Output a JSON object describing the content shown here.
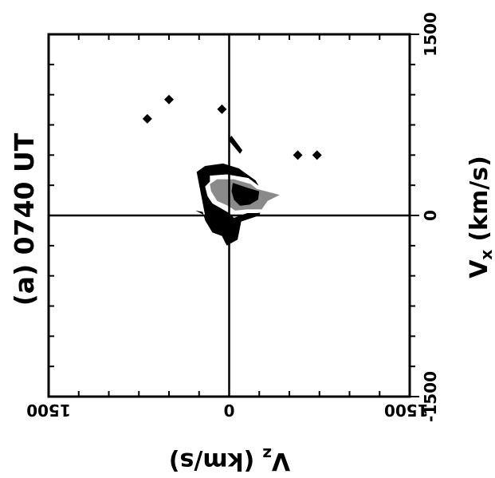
{
  "chart_data": {
    "type": "scatter",
    "panel_label": "(a) 0740 UT",
    "xlabel_base": "V",
    "xlabel_sub": "z",
    "xlabel_unit": "(km/s)",
    "ylabel_base": "V",
    "ylabel_sub": "x",
    "ylabel_unit": "(km/s)",
    "xlim": [
      1500,
      -1500
    ],
    "ylim": [
      -1500,
      1500
    ],
    "x_ticks": [
      1500,
      0,
      -1500
    ],
    "x_tick_labels": [
      "1500",
      "0",
      "-1500"
    ],
    "y_ticks": [
      -1500,
      0,
      1500
    ],
    "y_tick_labels": [
      "-1500",
      "0",
      "1500"
    ],
    "grid": false,
    "zero_lines": true,
    "colors": {
      "ink": "#000000",
      "mid": "#8a8a8a",
      "light": "#d0d0d0"
    },
    "points": [
      {
        "vz": 680,
        "vx": 800
      },
      {
        "vz": 500,
        "vx": 960
      },
      {
        "vz": 60,
        "vx": 880
      },
      {
        "vz": -570,
        "vx": 500
      },
      {
        "vz": -730,
        "vx": 500
      }
    ],
    "contours": [
      {
        "level": "outer",
        "fill": "#000000",
        "points": [
          [
            270,
            360
          ],
          [
            200,
            410
          ],
          [
            50,
            430
          ],
          [
            -80,
            390
          ],
          [
            -220,
            290
          ],
          [
            -300,
            150
          ],
          [
            -250,
            0
          ],
          [
            -100,
            -50
          ],
          [
            -70,
            -200
          ],
          [
            20,
            -250
          ],
          [
            60,
            -170
          ],
          [
            140,
            -140
          ],
          [
            200,
            -40
          ],
          [
            220,
            30
          ],
          [
            280,
            40
          ],
          [
            200,
            0
          ]
        ]
      },
      {
        "level": "middle",
        "fill": "#ffffff",
        "points": [
          [
            160,
            330
          ],
          [
            20,
            340
          ],
          [
            -160,
            310
          ],
          [
            -240,
            250
          ],
          [
            -430,
            190
          ],
          [
            -330,
            130
          ],
          [
            -320,
            30
          ],
          [
            -230,
            20
          ],
          [
            -150,
            20
          ],
          [
            -40,
            -20
          ],
          [
            0,
            20
          ],
          [
            140,
            100
          ],
          [
            180,
            160
          ],
          [
            200,
            240
          ],
          [
            160,
            280
          ]
        ]
      },
      {
        "level": "inner",
        "fill": "#8a8a8a",
        "points": [
          [
            100,
            300
          ],
          [
            -40,
            300
          ],
          [
            -180,
            260
          ],
          [
            -230,
            220
          ],
          [
            -420,
            170
          ],
          [
            -320,
            120
          ],
          [
            -270,
            50
          ],
          [
            -150,
            50
          ],
          [
            -50,
            40
          ],
          [
            10,
            80
          ],
          [
            100,
            120
          ],
          [
            150,
            200
          ],
          [
            160,
            260
          ]
        ]
      },
      {
        "level": "core",
        "fill": "#000000",
        "points": [
          [
            -30,
            270
          ],
          [
            -150,
            230
          ],
          [
            -250,
            200
          ],
          [
            -240,
            130
          ],
          [
            -170,
            90
          ],
          [
            -90,
            80
          ],
          [
            -40,
            130
          ],
          [
            -20,
            200
          ]
        ]
      },
      {
        "level": "beam",
        "fill": "#000000",
        "points": [
          [
            -20,
            660
          ],
          [
            10,
            630
          ],
          [
            -90,
            510
          ],
          [
            -110,
            540
          ]
        ]
      }
    ]
  }
}
